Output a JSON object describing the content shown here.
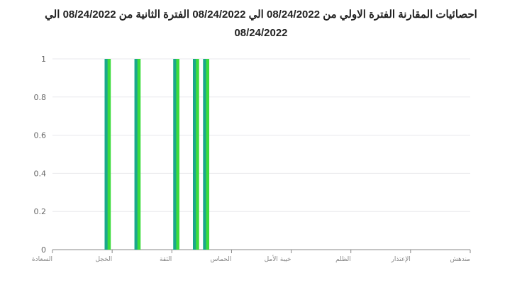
{
  "chart_data": {
    "type": "bar",
    "title_line1": "احصائيات المقارنة الفترة الاولي من 08/24/2022 الي 08/24/2022 الفترة الثانية من 08/24/2022 الي",
    "title_line2": "08/24/2022",
    "categories": [
      "السعادة",
      "الخجل",
      "الثقة",
      "الحماس",
      "خيبة الأمل",
      "الظلم",
      "الإعتذار",
      "مندهش"
    ],
    "x_range": [
      0,
      7
    ],
    "ylim": [
      0,
      1
    ],
    "yticks": [
      0,
      0.2,
      0.4,
      0.6,
      0.8,
      1
    ],
    "grid": true,
    "colors": {
      "bar_teal": "#1aa88a",
      "bar_green": "#3ddc3d",
      "grid": "#e8e8ec",
      "axis": "#888888"
    },
    "bars": [
      {
        "x": 0.9,
        "value": 1,
        "color": "teal"
      },
      {
        "x": 0.95,
        "value": 1,
        "color": "green"
      },
      {
        "x": 1.4,
        "value": 1,
        "color": "teal"
      },
      {
        "x": 1.45,
        "value": 1,
        "color": "green"
      },
      {
        "x": 2.05,
        "value": 1,
        "color": "teal"
      },
      {
        "x": 2.1,
        "value": 1,
        "color": "green"
      },
      {
        "x": 2.38,
        "value": 1,
        "color": "teal"
      },
      {
        "x": 2.43,
        "value": 1,
        "color": "green"
      },
      {
        "x": 2.55,
        "value": 1,
        "color": "teal"
      },
      {
        "x": 2.6,
        "value": 1,
        "color": "green"
      }
    ]
  }
}
